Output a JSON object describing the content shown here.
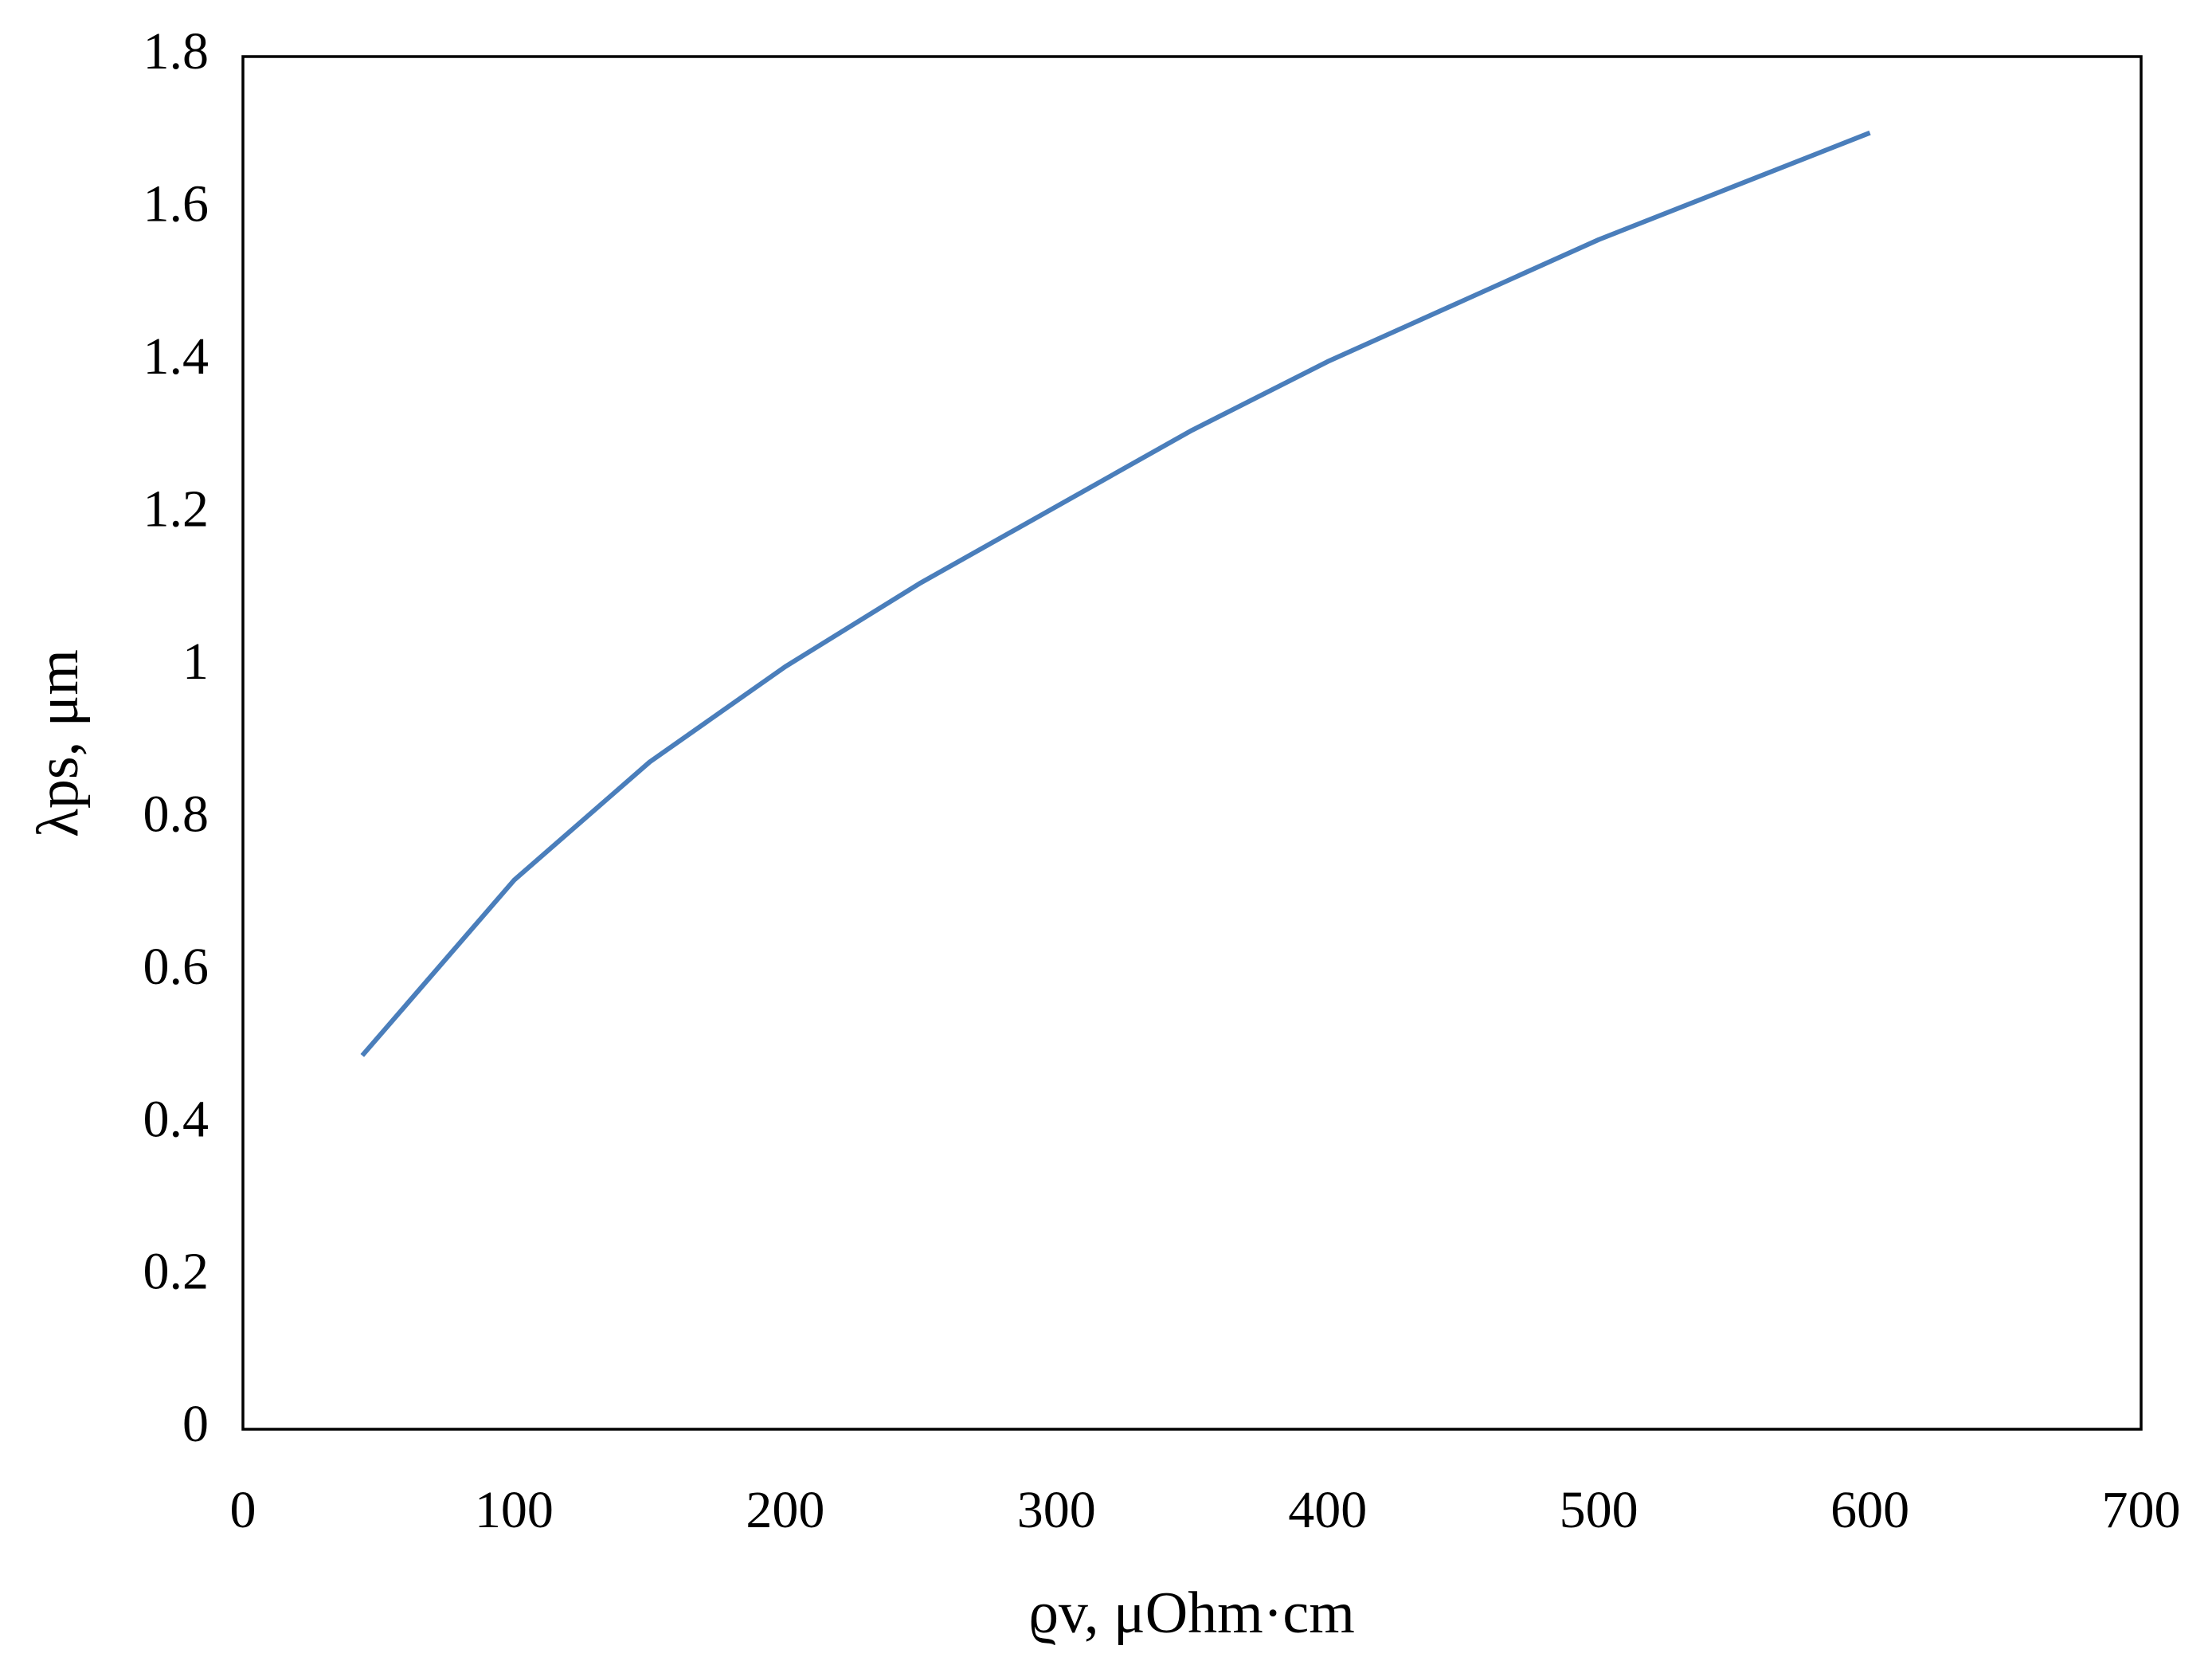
{
  "chart_data": {
    "type": "line",
    "x_label": "ϱv, μOhm·cm",
    "y_label": "λps, μm",
    "series": [
      {
        "color": "#4a7ebb",
        "x": [
          44,
          100,
          150,
          200,
          250,
          300,
          350,
          400,
          450,
          500,
          550,
          600
        ],
        "values": [
          0.49,
          0.72,
          0.875,
          1.0,
          1.11,
          1.21,
          1.31,
          1.4,
          1.48,
          1.56,
          1.63,
          1.7
        ]
      }
    ],
    "xlim": [
      0,
      700
    ],
    "xticks": [
      0,
      100,
      200,
      300,
      400,
      500,
      600,
      700
    ],
    "ylim": [
      0,
      1.8
    ],
    "yticks": [
      0,
      0.2,
      0.4,
      0.6,
      0.8,
      1,
      1.2,
      1.4,
      1.6,
      1.8
    ],
    "grid": false
  }
}
